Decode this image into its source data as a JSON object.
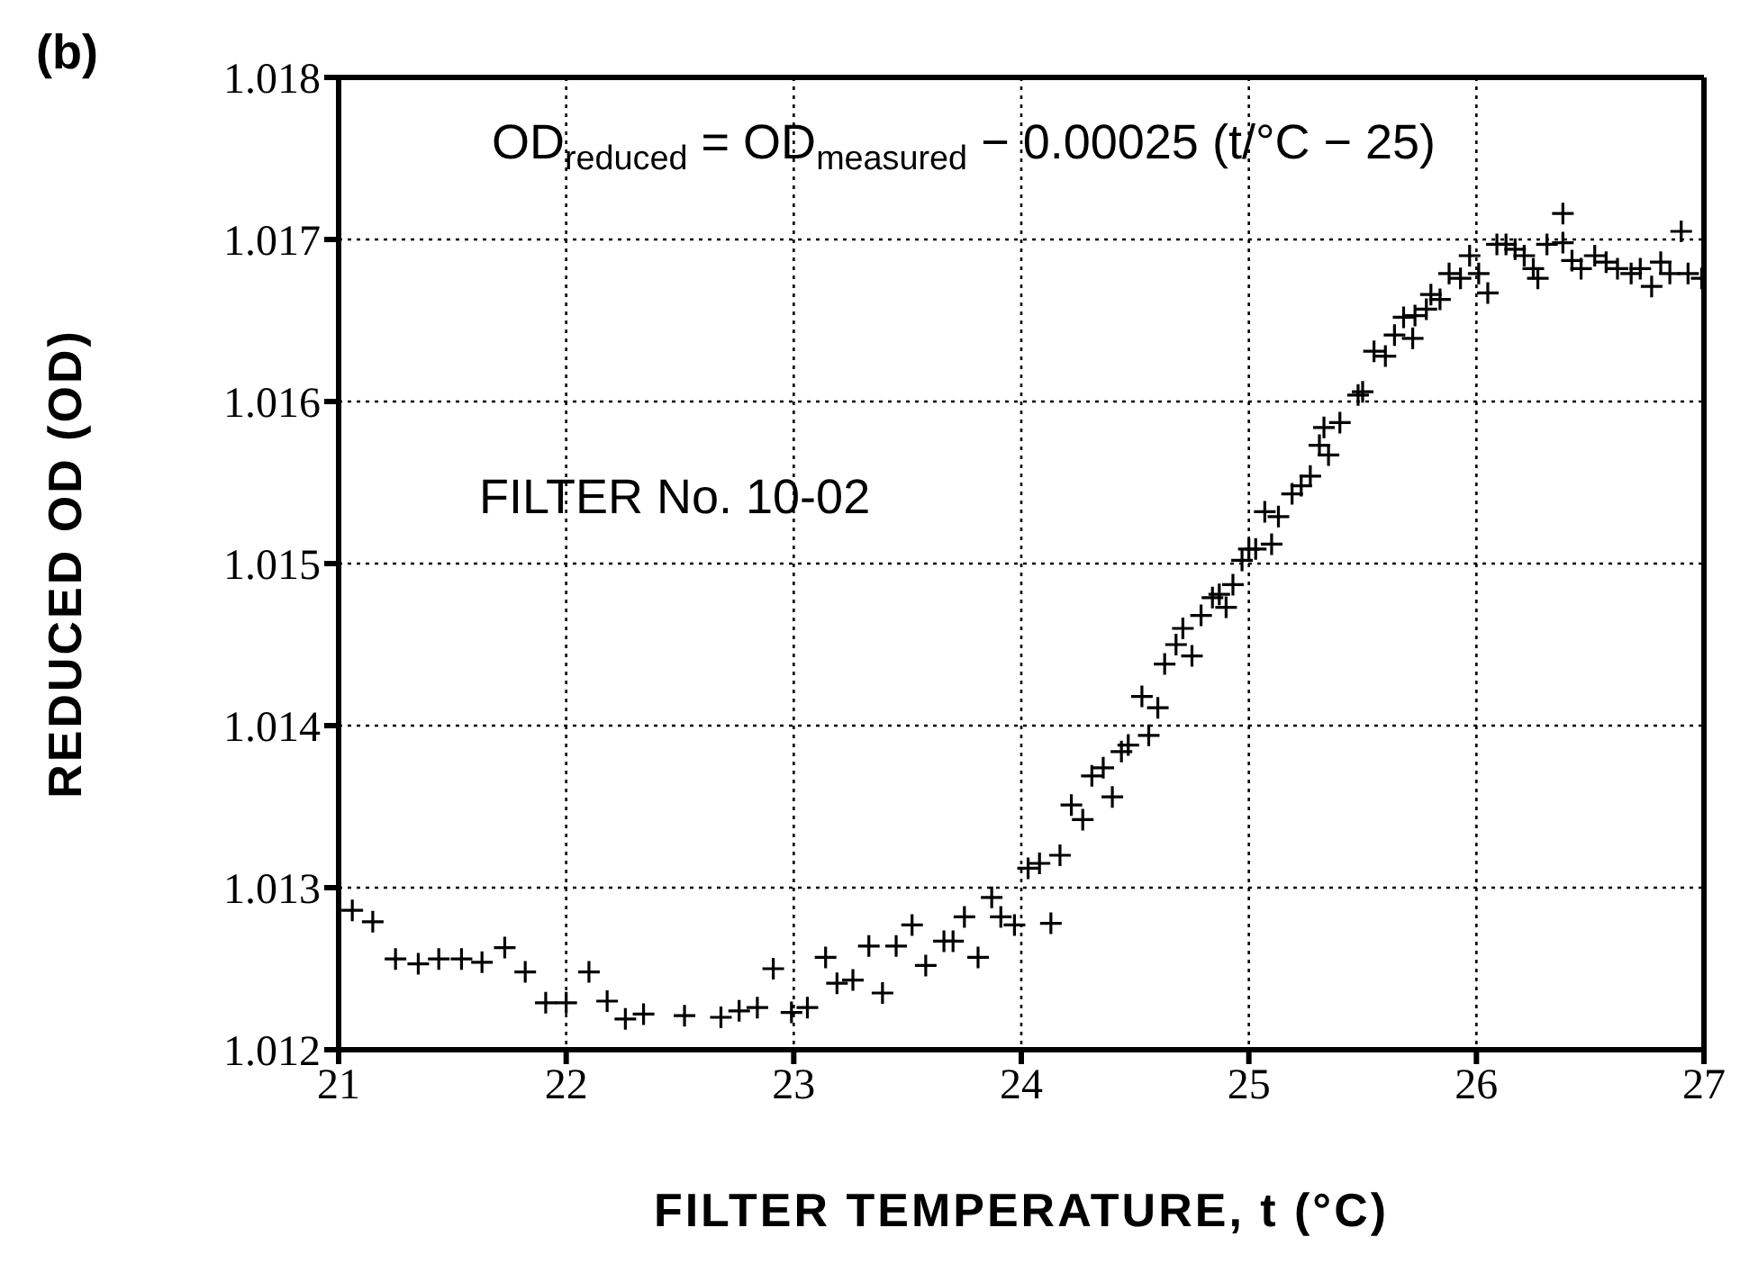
{
  "chart_data": {
    "type": "scatter",
    "xlabel": "FILTER TEMPERATURE, t (°C)",
    "ylabel": "REDUCED OD (OD)",
    "annotations": [
      "(b)",
      "OD$_{reduced}$ = OD$_{measured}$ − 0.00025 (t/°C − 25)",
      "FILTER No. 10-02"
    ],
    "xlim": [
      21,
      27
    ],
    "xticks": [
      21,
      22,
      23,
      24,
      25,
      26,
      27
    ],
    "ylim": [
      1.012,
      1.018
    ],
    "yticks": [
      {
        "value": 1.012,
        "label": "1.012"
      },
      {
        "value": 1.013,
        "label": "1.013"
      },
      {
        "value": 1.014,
        "label": "1.014"
      },
      {
        "value": 1.015,
        "label": "1.015"
      },
      {
        "value": 1.016,
        "label": "1.016"
      },
      {
        "value": 1.017,
        "label": "1.017"
      },
      {
        "value": 1.018,
        "label": "1.018"
      }
    ],
    "grid": true,
    "marker": "cross",
    "legend": false,
    "series": [
      {
        "color": "#000000",
        "x": [
          21.06,
          21.15,
          21.25,
          21.35,
          21.44,
          21.54,
          21.63,
          21.73,
          21.82,
          21.91,
          22.0,
          22.1,
          22.18,
          22.26,
          22.34,
          22.52,
          22.68,
          22.76,
          22.84,
          22.91,
          22.99,
          23.06,
          23.14,
          23.19,
          23.26,
          23.33,
          23.39,
          23.45,
          23.52,
          23.58,
          23.66,
          23.7,
          23.75,
          23.81,
          23.87,
          23.91,
          23.97,
          24.03,
          24.08,
          24.13,
          24.17,
          24.22,
          24.27,
          24.31,
          24.36,
          24.4,
          24.44,
          24.47,
          24.53,
          24.56,
          24.6,
          24.63,
          24.68,
          24.71,
          24.75,
          24.79,
          24.84,
          24.87,
          24.9,
          24.93,
          24.97,
          25.0,
          25.03,
          25.07,
          25.1,
          25.13,
          25.19,
          25.23,
          25.27,
          25.31,
          25.33,
          25.35,
          25.4,
          25.48,
          25.5,
          25.55,
          25.6,
          25.64,
          25.68,
          25.72,
          25.73,
          25.78,
          25.8,
          25.84,
          25.88,
          25.93,
          25.97,
          26.01,
          26.05,
          26.09,
          26.13,
          26.17,
          26.21,
          26.25,
          26.27,
          26.31,
          26.38,
          26.38,
          26.42,
          26.46,
          26.52,
          26.57,
          26.62,
          26.68,
          26.72,
          26.77,
          26.81,
          26.85,
          26.9,
          26.93,
          26.99
        ],
        "values": [
          1.01286,
          1.01279,
          1.01256,
          1.01253,
          1.01256,
          1.01256,
          1.01254,
          1.01263,
          1.01248,
          1.01229,
          1.01229,
          1.01248,
          1.0123,
          1.01219,
          1.01222,
          1.01221,
          1.0122,
          1.01224,
          1.01226,
          1.0125,
          1.01223,
          1.01226,
          1.01257,
          1.01241,
          1.01243,
          1.01264,
          1.01235,
          1.01264,
          1.01277,
          1.01252,
          1.01267,
          1.01267,
          1.01282,
          1.01257,
          1.01294,
          1.01282,
          1.01277,
          1.01312,
          1.01315,
          1.01278,
          1.0132,
          1.01351,
          1.01342,
          1.01369,
          1.01374,
          1.01356,
          1.01384,
          1.01388,
          1.01418,
          1.01394,
          1.01411,
          1.01438,
          1.0145,
          1.0146,
          1.01443,
          1.01468,
          1.01479,
          1.01481,
          1.01473,
          1.01487,
          1.01502,
          1.01509,
          1.01509,
          1.01532,
          1.01512,
          1.01529,
          1.01543,
          1.01548,
          1.01554,
          1.01573,
          1.01584,
          1.01567,
          1.01587,
          1.01604,
          1.01606,
          1.01631,
          1.01628,
          1.01641,
          1.01652,
          1.01639,
          1.01653,
          1.01657,
          1.01666,
          1.01663,
          1.01679,
          1.01676,
          1.0169,
          1.01679,
          1.01667,
          1.01697,
          1.01697,
          1.01694,
          1.0169,
          1.01682,
          1.01676,
          1.01697,
          1.01716,
          1.01698,
          1.01687,
          1.01682,
          1.0169,
          1.01686,
          1.01682,
          1.01679,
          1.01682,
          1.01671,
          1.01686,
          1.01679,
          1.01705,
          1.01679,
          1.01676
        ]
      }
    ]
  }
}
